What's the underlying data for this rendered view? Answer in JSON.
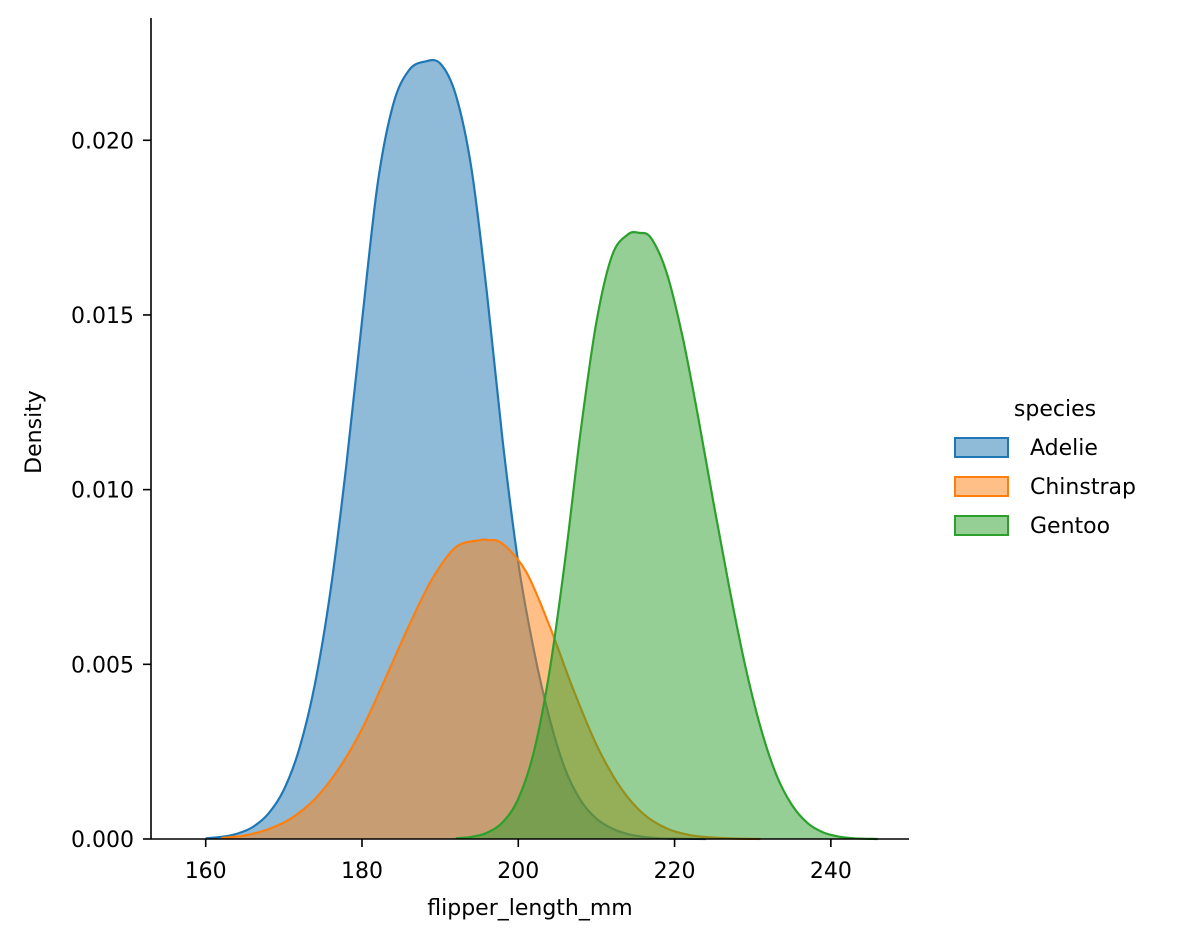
{
  "chart_data": {
    "type": "area",
    "xlabel": "flipper_length_mm",
    "ylabel": "Density",
    "xlim": [
      153,
      250
    ],
    "ylim": [
      0,
      0.0235
    ],
    "xticks": [
      160,
      180,
      200,
      220,
      240
    ],
    "yticks": [
      0.0,
      0.005,
      0.01,
      0.015,
      0.02
    ],
    "ytick_labels": [
      "0.000",
      "0.005",
      "0.010",
      "0.015",
      "0.020"
    ],
    "legend": {
      "title": "species",
      "placement": "right"
    },
    "series": [
      {
        "name": "Adelie",
        "color": "#1f77b4",
        "x": [
          160,
          162,
          164,
          166,
          168,
          170,
          172,
          174,
          176,
          178,
          180,
          182,
          184,
          186,
          188,
          190,
          192,
          194,
          196,
          198,
          200,
          202,
          204,
          206,
          208,
          210,
          212,
          214,
          216,
          218,
          220,
          222,
          224
        ],
        "y": [
          2e-05,
          6e-05,
          0.00015,
          0.00034,
          0.00072,
          0.00141,
          0.0026,
          0.00446,
          0.00715,
          0.01071,
          0.01482,
          0.01875,
          0.02103,
          0.022,
          0.02225,
          0.0222,
          0.0213,
          0.0192,
          0.0156,
          0.0114,
          0.0079,
          0.0054,
          0.00345,
          0.002,
          0.0011,
          0.00058,
          0.0003,
          0.00014,
          6e-05,
          2e-05,
          1e-05,
          4e-06,
          0.0
        ]
      },
      {
        "name": "Chinstrap",
        "color": "#ff7f0e",
        "x": [
          162,
          165,
          168,
          171,
          174,
          177,
          180,
          183,
          186,
          189,
          192,
          195,
          196,
          198,
          201,
          204,
          207,
          210,
          213,
          216,
          219,
          222,
          225,
          228,
          231
        ],
        "y": [
          3e-05,
          0.0001,
          0.00028,
          0.0006,
          0.00115,
          0.002,
          0.00315,
          0.0046,
          0.0061,
          0.00745,
          0.00835,
          0.00855,
          0.00856,
          0.00845,
          0.00765,
          0.0061,
          0.0043,
          0.0027,
          0.0015,
          0.00072,
          0.0003,
          0.00011,
          4e-05,
          1e-05,
          0.0
        ]
      },
      {
        "name": "Gentoo",
        "color": "#2ca02c",
        "x": [
          192,
          194,
          196,
          198,
          200,
          202,
          204,
          206,
          208,
          210,
          212,
          214,
          215.5,
          217,
          219,
          221,
          223,
          225,
          227,
          229,
          231,
          233,
          235,
          237,
          239,
          241,
          243,
          246
        ],
        "y": [
          2e-05,
          6e-05,
          0.00018,
          0.00048,
          0.00115,
          0.0025,
          0.0048,
          0.008,
          0.0117,
          0.0148,
          0.0167,
          0.0173,
          0.01735,
          0.0172,
          0.0162,
          0.0144,
          0.0121,
          0.0096,
          0.0072,
          0.005,
          0.0032,
          0.00185,
          0.00098,
          0.00046,
          0.00019,
          7e-05,
          2e-05,
          0.0
        ]
      }
    ]
  }
}
